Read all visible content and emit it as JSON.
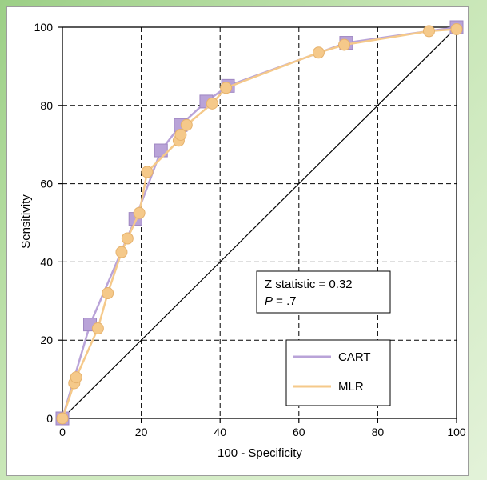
{
  "chart_data": {
    "type": "line",
    "xlabel": "100 - Specificity",
    "ylabel": "Sensitivity",
    "xlim": [
      0,
      100
    ],
    "ylim": [
      0,
      100
    ],
    "xticks": [
      0,
      20,
      40,
      60,
      80,
      100
    ],
    "yticks": [
      0,
      20,
      40,
      60,
      80,
      100
    ],
    "grid": true,
    "reference_line": {
      "from": [
        0,
        0
      ],
      "to": [
        100,
        100
      ]
    },
    "annotation": {
      "line1": "Z statistic = 0.32",
      "line2_italic": "P",
      "line2_rest": " = .7"
    },
    "legend": {
      "placement": "lower-right"
    },
    "series": [
      {
        "name": "CART",
        "color": "#b9a3d8",
        "marker": "square",
        "x": [
          0,
          7,
          18.5,
          25,
          30,
          36.5,
          42,
          72,
          100
        ],
        "y": [
          0,
          24,
          51,
          68.5,
          75,
          81,
          85,
          96,
          100
        ]
      },
      {
        "name": "MLR",
        "color": "#f5c98a",
        "marker": "circle",
        "x": [
          0,
          3,
          3.5,
          9,
          11.5,
          15,
          16.5,
          19.5,
          21.5,
          29.5,
          30,
          31.5,
          38,
          41.5,
          65,
          71.5,
          93,
          100
        ],
        "y": [
          0,
          9,
          10.5,
          23,
          32,
          42.5,
          46,
          52.5,
          63,
          71,
          72.5,
          75,
          80.5,
          84.5,
          93.5,
          95.5,
          99,
          99.5
        ]
      }
    ]
  }
}
